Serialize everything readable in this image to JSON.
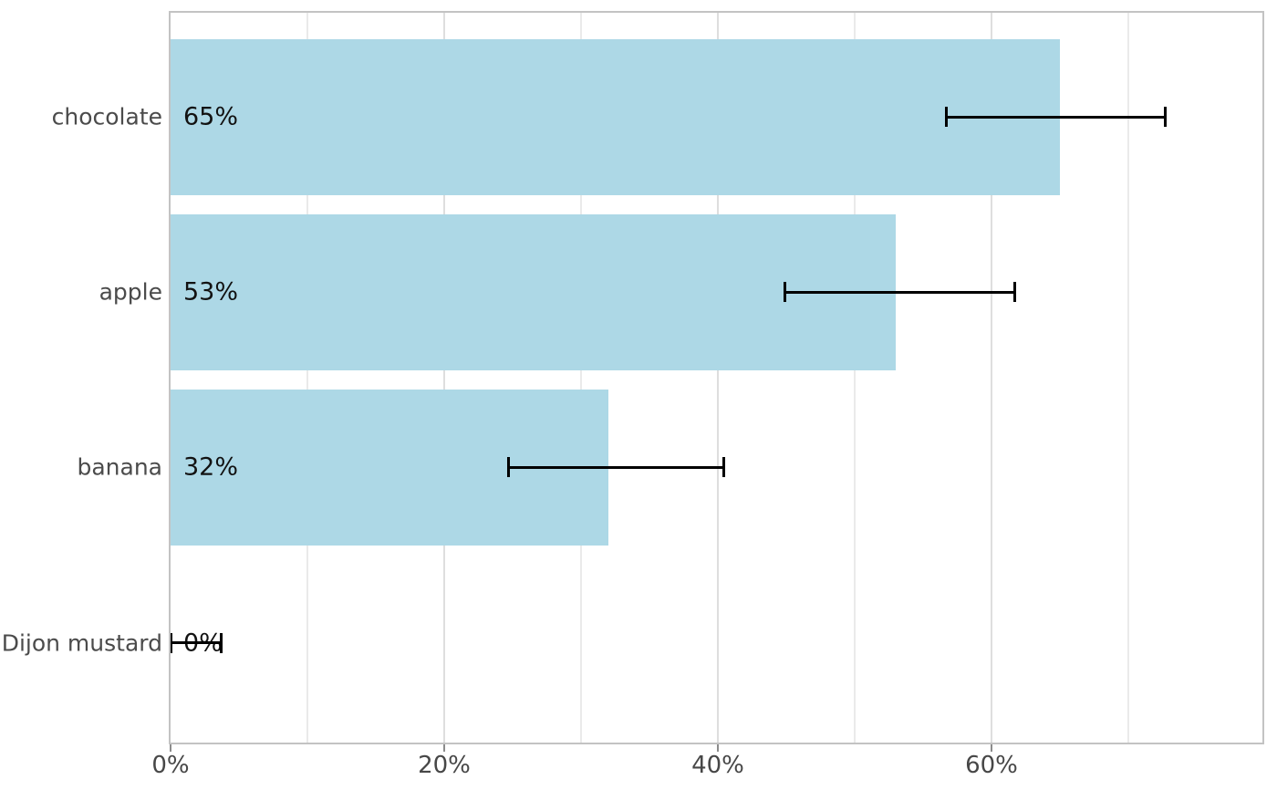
{
  "chart_data": {
    "type": "bar",
    "orientation": "horizontal",
    "title": "",
    "xlabel": "",
    "ylabel": "",
    "categories": [
      "chocolate",
      "apple",
      "banana",
      "Dijon mustard"
    ],
    "values": [
      65,
      53,
      32,
      0
    ],
    "value_labels": [
      "65%",
      "53%",
      "32%",
      "0%"
    ],
    "error_bars": {
      "low": [
        56.7,
        44.9,
        24.7,
        0
      ],
      "high": [
        72.7,
        61.7,
        40.4,
        3.7
      ]
    },
    "x_axis": {
      "tick_values": [
        0,
        20,
        40,
        60
      ],
      "tick_labels": [
        "0%",
        "20%",
        "40%",
        "60%"
      ],
      "minor_tick_values": [
        10,
        30,
        50,
        70
      ],
      "range": [
        0,
        79.8
      ]
    },
    "grid": "on",
    "legend": "none",
    "colors": {
      "bar": "#ADD8E6",
      "error_bar": "#000000",
      "value_label": "#121212",
      "category_label": "#4b4b4b",
      "tick_label": "#474747",
      "tick_mark": "#8c8c8c",
      "grid_major": "#dedede",
      "grid_minor": "#eaeaea",
      "panel_border": "#c3c3c3",
      "background": "#ffffff"
    }
  }
}
